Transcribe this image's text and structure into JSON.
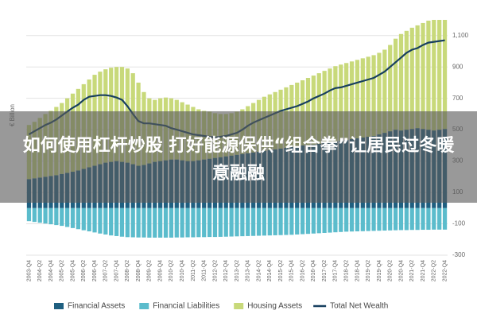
{
  "chart_data": {
    "type": "bar",
    "stacked": true,
    "ylabel": "€ Billion",
    "ylim": [
      -300,
      1200
    ],
    "yticks": [
      -300,
      -100,
      100,
      300,
      500,
      700,
      900,
      {
        "value": 1100,
        "label": "1,100"
      }
    ],
    "grid": true,
    "legend": "bottom",
    "categories": [
      "2003-Q4",
      null,
      "2004-Q2",
      null,
      "2004-Q4",
      null,
      "2005-Q2",
      null,
      "2005-Q4",
      null,
      "2006-Q2",
      null,
      "2006-Q4",
      null,
      "2007-Q2",
      null,
      "2007-Q4",
      null,
      "2008-Q2",
      null,
      "2008-Q4",
      null,
      "2009-Q2",
      null,
      "2009-Q4",
      null,
      "2010-Q2",
      null,
      "2010-Q4",
      null,
      "2011-Q2",
      null,
      "2011-Q4",
      null,
      "2012-Q2",
      null,
      "2012-Q4",
      null,
      "2013-Q2",
      null,
      "2013-Q4",
      null,
      "2014-Q2",
      null,
      "2014-Q4",
      null,
      "2015-Q2",
      null,
      "2015-Q4",
      null,
      "2016-Q2",
      null,
      "2016-Q4",
      null,
      "2017-Q2",
      null,
      "2017-Q4",
      null,
      "2018-Q2",
      null,
      "2018-Q4",
      null,
      "2019-Q2",
      null,
      "2019-Q4",
      null,
      "2020-Q2",
      null,
      "2020-Q4",
      null,
      "2021-Q2",
      null,
      "2021-Q4",
      null,
      "2022-Q2",
      null,
      "2022-Q4"
    ],
    "series": [
      {
        "name": "Financial Assets",
        "color": "#1f5f80",
        "values": [
          185,
          190,
          195,
          200,
          205,
          210,
          218,
          225,
          232,
          240,
          250,
          260,
          270,
          280,
          290,
          295,
          300,
          295,
          290,
          280,
          270,
          275,
          285,
          295,
          300,
          305,
          310,
          310,
          305,
          300,
          300,
          305,
          310,
          315,
          320,
          325,
          330,
          335,
          340,
          345,
          350,
          355,
          360,
          365,
          370,
          375,
          380,
          385,
          390,
          395,
          400,
          400,
          405,
          410,
          415,
          420,
          425,
          430,
          435,
          440,
          445,
          450,
          455,
          460,
          470,
          480,
          490,
          500,
          495,
          500,
          505,
          510,
          505,
          500,
          495,
          500,
          505
        ]
      },
      {
        "name": "Financial Liabilities",
        "color": "#5bbccc",
        "values": [
          -83,
          -88,
          -93,
          -98,
          -103,
          -108,
          -113,
          -120,
          -127,
          -134,
          -141,
          -148,
          -155,
          -162,
          -168,
          -174,
          -178,
          -182,
          -185,
          -186,
          -187,
          -187,
          -188,
          -188,
          -188,
          -188,
          -188,
          -187,
          -187,
          -186,
          -186,
          -185,
          -185,
          -184,
          -184,
          -183,
          -182,
          -181,
          -180,
          -179,
          -178,
          -177,
          -176,
          -175,
          -174,
          -173,
          -172,
          -171,
          -170,
          -168,
          -166,
          -164,
          -162,
          -160,
          -158,
          -156,
          -154,
          -152,
          -150,
          -149,
          -148,
          -147,
          -146,
          -145,
          -144,
          -143,
          -142,
          -141,
          -140,
          -140,
          -139,
          -139,
          -138,
          -138,
          -137,
          -137,
          -137
        ]
      },
      {
        "name": "Housing Assets",
        "color": "#c8d97a",
        "values": [
          345,
          360,
          380,
          400,
          415,
          435,
          452,
          475,
          498,
          520,
          540,
          560,
          580,
          590,
          595,
          600,
          600,
          605,
          600,
          580,
          530,
          465,
          415,
          395,
          400,
          400,
          390,
          380,
          370,
          360,
          345,
          325,
          310,
          300,
          285,
          275,
          270,
          270,
          275,
          285,
          300,
          315,
          330,
          345,
          355,
          365,
          375,
          385,
          395,
          405,
          415,
          430,
          440,
          450,
          460,
          470,
          480,
          485,
          490,
          495,
          500,
          505,
          510,
          515,
          520,
          530,
          550,
          580,
          615,
          630,
          645,
          655,
          675,
          695,
          705,
          700,
          695
        ]
      },
      {
        "name": "Total Net Wealth",
        "color": "#173f5f",
        "type": "line",
        "values": [
          470,
          490,
          510,
          530,
          545,
          565,
          590,
          615,
          640,
          660,
          690,
          710,
          715,
          720,
          720,
          715,
          705,
          690,
          650,
          600,
          555,
          540,
          540,
          535,
          530,
          525,
          510,
          500,
          490,
          480,
          470,
          465,
          460,
          455,
          450,
          455,
          460,
          470,
          480,
          500,
          525,
          545,
          560,
          575,
          590,
          605,
          620,
          630,
          640,
          650,
          665,
          680,
          700,
          715,
          730,
          750,
          765,
          770,
          780,
          790,
          800,
          810,
          820,
          830,
          850,
          870,
          900,
          930,
          960,
          990,
          1010,
          1020,
          1040,
          1055,
          1060,
          1065,
          1070
        ]
      }
    ]
  },
  "overlay": {
    "headline": "如何使用杠杆炒股 打好能源保供“组合拳”让居民过冬暖意融融"
  }
}
